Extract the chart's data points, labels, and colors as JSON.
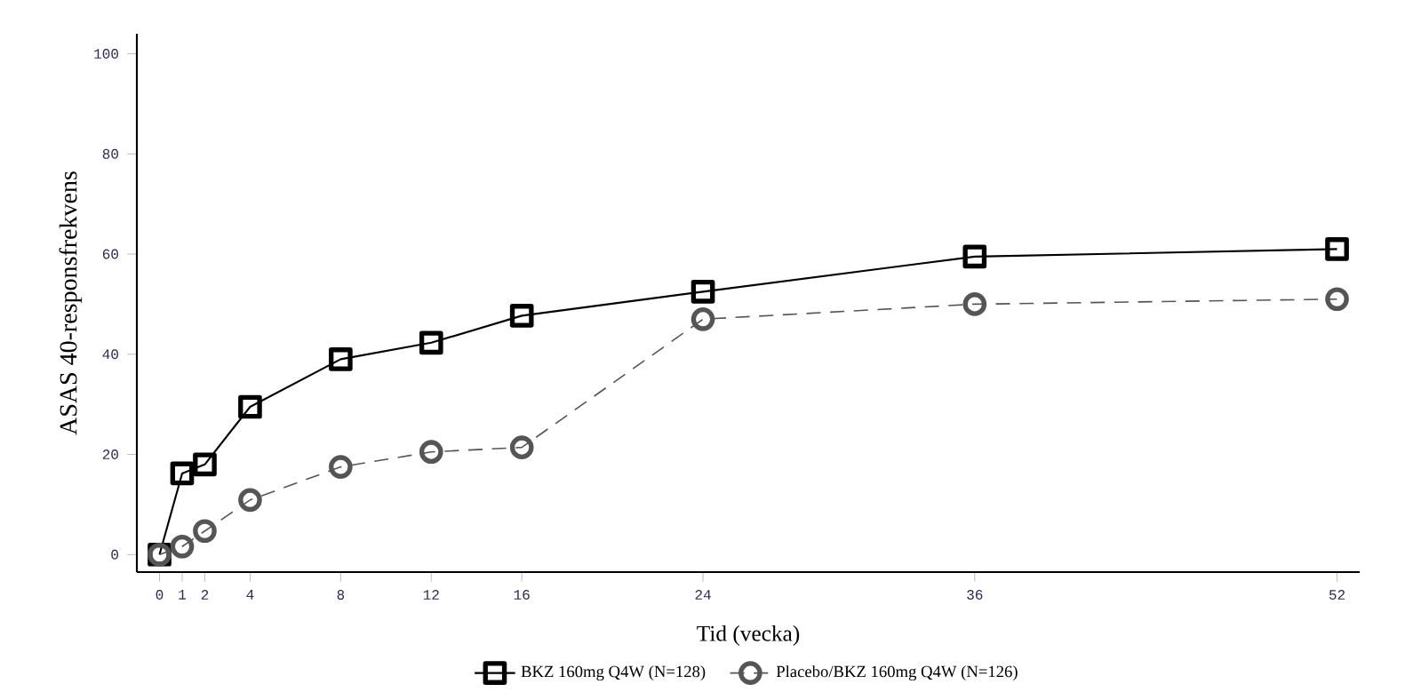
{
  "chart_data": {
    "type": "line",
    "xlabel": "Tid (vecka)",
    "ylabel": "ASAS 40-responsfrekvens",
    "x": [
      0,
      1,
      2,
      4,
      8,
      12,
      16,
      24,
      36,
      52
    ],
    "series": [
      {
        "name": "BKZ 160mg Q4W (N=128)",
        "color": "#000000",
        "marker": "square",
        "line_style": "solid",
        "values": [
          0,
          16.2,
          18,
          29.5,
          39,
          42.3,
          47.7,
          52.5,
          59.5,
          61
        ]
      },
      {
        "name": "Placebo/BKZ 160mg Q4W (N=126)",
        "color": "#555555",
        "marker": "circle",
        "line_style": "dashed",
        "values": [
          0,
          1.6,
          4.7,
          10.9,
          17.5,
          20.5,
          21.4,
          47,
          50,
          51
        ]
      }
    ],
    "xlim": [
      -1,
      53
    ],
    "ylim": [
      -3.5,
      104
    ],
    "xticks": [
      0,
      1,
      2,
      4,
      8,
      12,
      16,
      24,
      36,
      52
    ],
    "yticks": [
      0,
      20,
      40,
      60,
      80,
      100
    ],
    "grid": false,
    "legend": "bottom"
  }
}
